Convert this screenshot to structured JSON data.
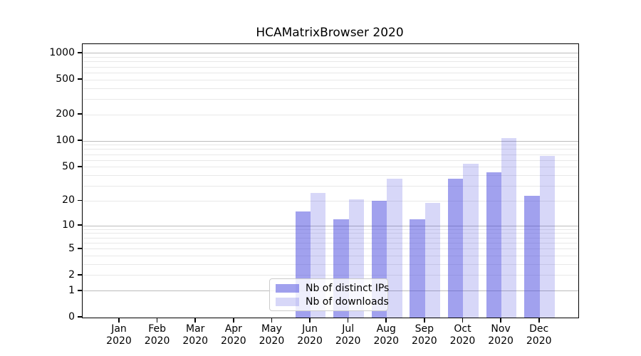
{
  "title": "HCAMatrixBrowser 2020",
  "chart_data": {
    "type": "bar",
    "title": "HCAMatrixBrowser 2020",
    "y_scale": "log1p (position proportional to log10(1+y))",
    "ylim": [
      0,
      1270
    ],
    "grid": "on",
    "legend_position": "lower center-left inside plot",
    "categories": [
      "Jan 2020",
      "Feb 2020",
      "Mar 2020",
      "Apr 2020",
      "May 2020",
      "Jun 2020",
      "Jul 2020",
      "Aug 2020",
      "Sep 2020",
      "Oct 2020",
      "Nov 2020",
      "Dec 2020"
    ],
    "series": [
      {
        "name": "Nb of distinct IPs",
        "color": "rgba(68,68,221,0.50)",
        "values": [
          0,
          0,
          0,
          0,
          0,
          15,
          12,
          20,
          12,
          37,
          44,
          23
        ]
      },
      {
        "name": "Nb of downloads",
        "color": "rgba(68,68,221,0.21)",
        "values": [
          0,
          0,
          0,
          0,
          0,
          25,
          21,
          37,
          19,
          55,
          108,
          67
        ]
      }
    ],
    "y_ticks": [
      0,
      1,
      2,
      5,
      10,
      20,
      50,
      100,
      200,
      500,
      1000
    ],
    "grid_major_values": [
      1,
      10,
      100,
      1000
    ],
    "grid_minor_values": [
      2,
      3,
      4,
      5,
      6,
      7,
      8,
      9,
      20,
      30,
      40,
      50,
      60,
      70,
      80,
      90,
      200,
      300,
      400,
      500,
      600,
      700,
      800,
      900
    ],
    "colors": {
      "grid_major": "#bbbbbb",
      "grid_minor": "#e8e8e8",
      "axis": "#000000",
      "legend_border": "#cccccc"
    }
  }
}
